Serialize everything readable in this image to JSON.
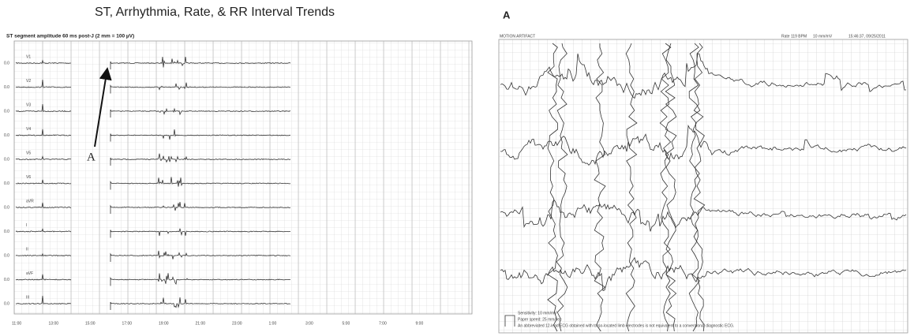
{
  "left_panel": {
    "title": "ST, Arrhythmia, Rate, & RR Interval Trends",
    "subtitle": "ST segment amplitude 60 ms post-J (2 mm = 100 µV)",
    "leads": [
      "V1",
      "V2",
      "V3",
      "V4",
      "V5",
      "V6",
      "aVR",
      "I",
      "II",
      "aVF",
      "III"
    ],
    "row_value_label": "0.0",
    "time_labels": [
      "11:00",
      "13:00",
      "15:00",
      "17:00",
      "19:00",
      "21:00",
      "23:00",
      "1:00",
      "3:00",
      "5:00",
      "7:00",
      "9:00"
    ],
    "annotation": "A"
  },
  "right_panel": {
    "label": "A",
    "header_left": "MOTION ARTIFACT",
    "header_rate": "Rate 119 BPM",
    "header_gain": "10 mm/mV",
    "header_time": "15:46:37, 09/25/2011",
    "footer": [
      "Sensitivity: 10 mm/mV",
      "Paper speed: 25 mm/sec",
      "An abbreviated 12-lead ECG obtained with torso-located limb electrodes is not equivalent to a conventional diagnostic ECG."
    ]
  }
}
